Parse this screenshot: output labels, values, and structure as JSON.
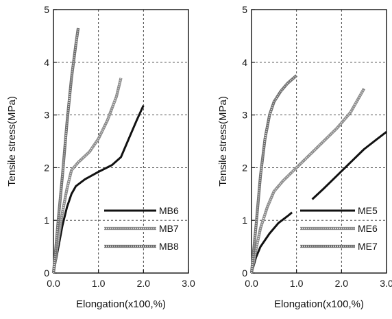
{
  "chart_data": [
    {
      "type": "line",
      "xlabel": "Elongation(x100,%)",
      "ylabel": "Tensile stress(MPa)",
      "xlim": [
        0,
        3.0
      ],
      "ylim": [
        0,
        5
      ],
      "xticks": [
        "0.0",
        "1.0",
        "2.0",
        "3.0"
      ],
      "yticks": [
        "0",
        "1",
        "2",
        "3",
        "4",
        "5"
      ],
      "grid": true,
      "legend_position": "bottom-right",
      "series": [
        {
          "name": "MB6",
          "color": "#111111",
          "style": "solid",
          "points": [
            [
              0,
              0
            ],
            [
              0.1,
              0.45
            ],
            [
              0.2,
              0.9
            ],
            [
              0.3,
              1.25
            ],
            [
              0.4,
              1.5
            ],
            [
              0.5,
              1.65
            ],
            [
              0.7,
              1.78
            ],
            [
              1.0,
              1.92
            ],
            [
              1.3,
              2.05
            ],
            [
              1.5,
              2.2
            ],
            [
              1.7,
              2.6
            ],
            [
              1.85,
              2.9
            ],
            [
              2.0,
              3.18
            ]
          ]
        },
        {
          "name": "MB7",
          "color": "#8a8a8a",
          "style": "hatched",
          "points": [
            [
              0,
              0
            ],
            [
              0.1,
              0.6
            ],
            [
              0.2,
              1.15
            ],
            [
              0.3,
              1.6
            ],
            [
              0.4,
              1.95
            ],
            [
              0.55,
              2.1
            ],
            [
              0.8,
              2.3
            ],
            [
              1.0,
              2.55
            ],
            [
              1.2,
              2.9
            ],
            [
              1.4,
              3.35
            ],
            [
              1.5,
              3.7
            ]
          ]
        },
        {
          "name": "MB8",
          "color": "#6e6e6e",
          "style": "hatched",
          "points": [
            [
              0,
              0
            ],
            [
              0.05,
              0.45
            ],
            [
              0.1,
              0.95
            ],
            [
              0.2,
              1.85
            ],
            [
              0.3,
              2.85
            ],
            [
              0.4,
              3.7
            ],
            [
              0.5,
              4.35
            ],
            [
              0.55,
              4.65
            ]
          ]
        }
      ]
    },
    {
      "type": "line",
      "xlabel": "Elongation(x100,%)",
      "ylabel": "Tensile stress(MPa)",
      "xlim": [
        0,
        3.0
      ],
      "ylim": [
        0,
        5
      ],
      "xticks": [
        "0.0",
        "1.0",
        "2.0",
        "3.0"
      ],
      "yticks": [
        "0",
        "1",
        "2",
        "3",
        "4",
        "5"
      ],
      "grid": true,
      "legend_position": "bottom-right",
      "series": [
        {
          "name": "ME5",
          "color": "#111111",
          "style": "solid",
          "points": [
            [
              0,
              0
            ],
            [
              0.1,
              0.3
            ],
            [
              0.2,
              0.5
            ],
            [
              0.4,
              0.75
            ],
            [
              0.6,
              0.95
            ],
            [
              0.8,
              1.08
            ],
            [
              0.9,
              1.15
            ],
            [
              null,
              null
            ],
            [
              1.35,
              1.4
            ],
            [
              1.6,
              1.6
            ],
            [
              1.9,
              1.85
            ],
            [
              2.2,
              2.1
            ],
            [
              2.5,
              2.35
            ],
            [
              2.8,
              2.55
            ],
            [
              3.0,
              2.68
            ]
          ]
        },
        {
          "name": "ME6",
          "color": "#8a8a8a",
          "style": "hatched",
          "points": [
            [
              0,
              0
            ],
            [
              0.1,
              0.45
            ],
            [
              0.2,
              0.85
            ],
            [
              0.35,
              1.25
            ],
            [
              0.5,
              1.55
            ],
            [
              0.7,
              1.75
            ],
            [
              1.0,
              2.0
            ],
            [
              1.3,
              2.25
            ],
            [
              1.6,
              2.5
            ],
            [
              1.9,
              2.75
            ],
            [
              2.2,
              3.05
            ],
            [
              2.5,
              3.5
            ]
          ]
        },
        {
          "name": "ME7",
          "color": "#6e6e6e",
          "style": "hatched",
          "points": [
            [
              0,
              0
            ],
            [
              0.1,
              0.9
            ],
            [
              0.2,
              1.85
            ],
            [
              0.3,
              2.55
            ],
            [
              0.4,
              3.0
            ],
            [
              0.5,
              3.25
            ],
            [
              0.65,
              3.45
            ],
            [
              0.8,
              3.6
            ],
            [
              1.0,
              3.75
            ]
          ]
        }
      ]
    }
  ]
}
